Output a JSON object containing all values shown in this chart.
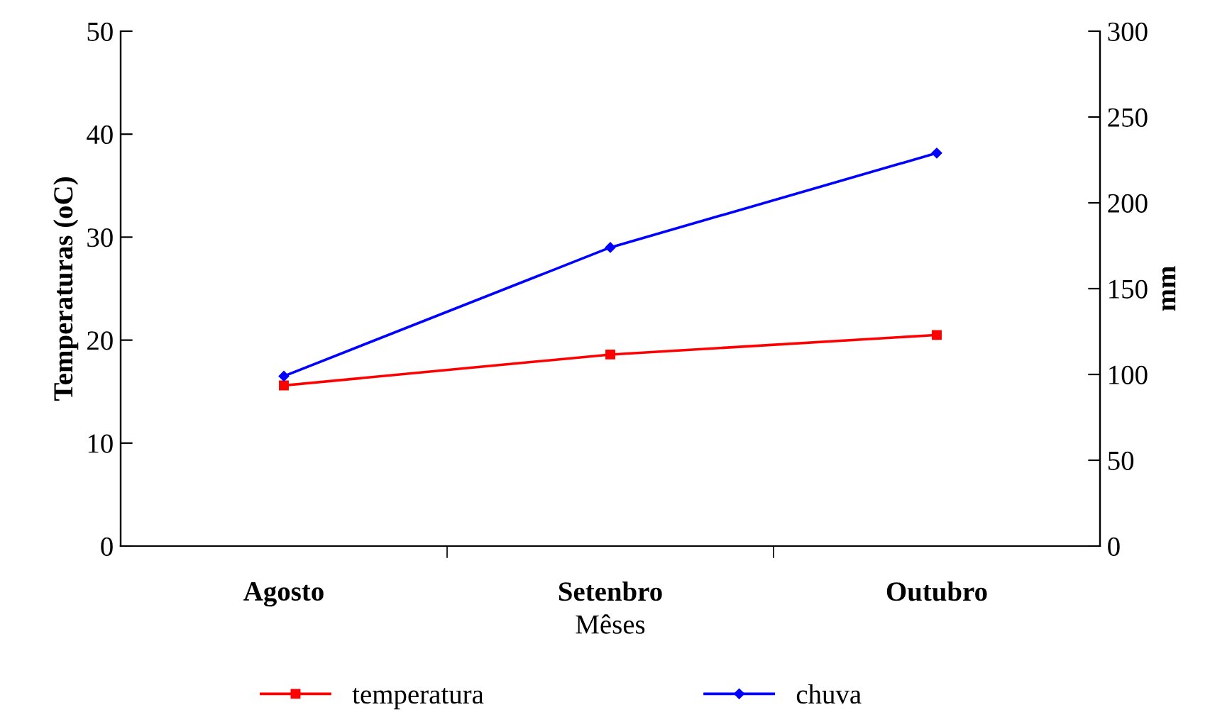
{
  "chart_data": {
    "type": "line",
    "xlabel": "Mêses",
    "ylabel": "Temperaturas (oC)",
    "y2label": "mm",
    "categories": [
      "Agosto",
      "Setenbro",
      "Outubro"
    ],
    "series": [
      {
        "name": "temperatura",
        "color": "#ff0000",
        "values": [
          15.6,
          18.6,
          20.5
        ],
        "marker": "square"
      },
      {
        "name": "chuva",
        "color": "#0000ff",
        "values": [
          99,
          174,
          229
        ],
        "axis": "y2",
        "marker": "diamond"
      }
    ],
    "ylim": [
      0,
      50
    ],
    "yticks": [
      0,
      10,
      20,
      30,
      40,
      50
    ],
    "y2lim": [
      0,
      300
    ],
    "y2ticks": [
      0,
      50,
      100,
      150,
      200,
      250,
      300
    ],
    "grid": false,
    "legend": "bottom",
    "line_style": "solid"
  }
}
